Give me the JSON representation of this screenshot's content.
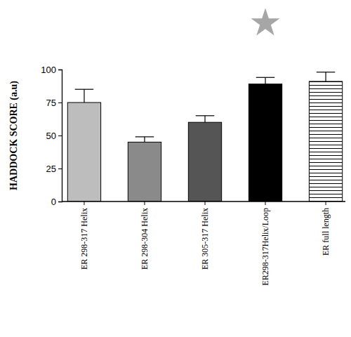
{
  "chart_data": {
    "type": "bar",
    "y_label": "HADDOCK SCORE (a.u)",
    "categories": [
      "ER 298-317 Helix",
      "ER 298-304 Helix",
      "ER 305-317 Helix",
      "ER298-317Helix/Loop",
      "ER full length"
    ],
    "values": [
      75,
      45,
      60,
      89,
      91
    ],
    "errors": [
      10,
      4,
      5,
      5,
      7
    ],
    "colors": [
      "#bdbdbd",
      "#8a8a8a",
      "#555555",
      "#000000",
      "#ffffff"
    ],
    "ylim": [
      0,
      100
    ],
    "yticks": [
      0,
      25,
      50,
      75,
      100
    ],
    "grid": false
  }
}
